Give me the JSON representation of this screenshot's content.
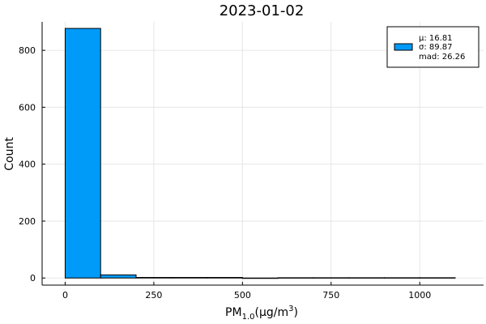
{
  "chart_data": {
    "type": "bar",
    "title": "2023-01-02",
    "xlabel": {
      "prefix": "PM",
      "subscript": "1.0",
      "middle": "(μg/m",
      "superscript": "3",
      "suffix": ")"
    },
    "ylabel": "Count",
    "xlim": [
      -65,
      1180
    ],
    "ylim": [
      -25,
      900
    ],
    "x_ticks": [
      0,
      250,
      500,
      750,
      1000
    ],
    "y_ticks": [
      0,
      200,
      400,
      600,
      800
    ],
    "x_tick_labels": [
      "0",
      "250",
      "500",
      "750",
      "1000"
    ],
    "y_tick_labels": [
      "0",
      "200",
      "400",
      "600",
      "800"
    ],
    "grid": true,
    "legend_position": "top-right",
    "series": [
      {
        "name": "μ: 16.81\nσ: 89.87\nmad: 26.26",
        "legend_lines": [
          "μ: 16.81",
          "σ: 89.87",
          "mad: 26.26"
        ],
        "color": "#009af9",
        "bins": [
          {
            "x0": 0,
            "x1": 100,
            "count": 877
          },
          {
            "x0": 100,
            "x1": 200,
            "count": 11
          },
          {
            "x0": 200,
            "x1": 300,
            "count": 2
          },
          {
            "x0": 300,
            "x1": 400,
            "count": 2
          },
          {
            "x0": 400,
            "x1": 500,
            "count": 2
          },
          {
            "x0": 500,
            "x1": 600,
            "count": 0
          },
          {
            "x0": 600,
            "x1": 700,
            "count": 1
          },
          {
            "x0": 700,
            "x1": 800,
            "count": 1
          },
          {
            "x0": 800,
            "x1": 900,
            "count": 1
          },
          {
            "x0": 900,
            "x1": 1000,
            "count": 1
          },
          {
            "x0": 1000,
            "x1": 1100,
            "count": 1
          }
        ]
      }
    ]
  }
}
